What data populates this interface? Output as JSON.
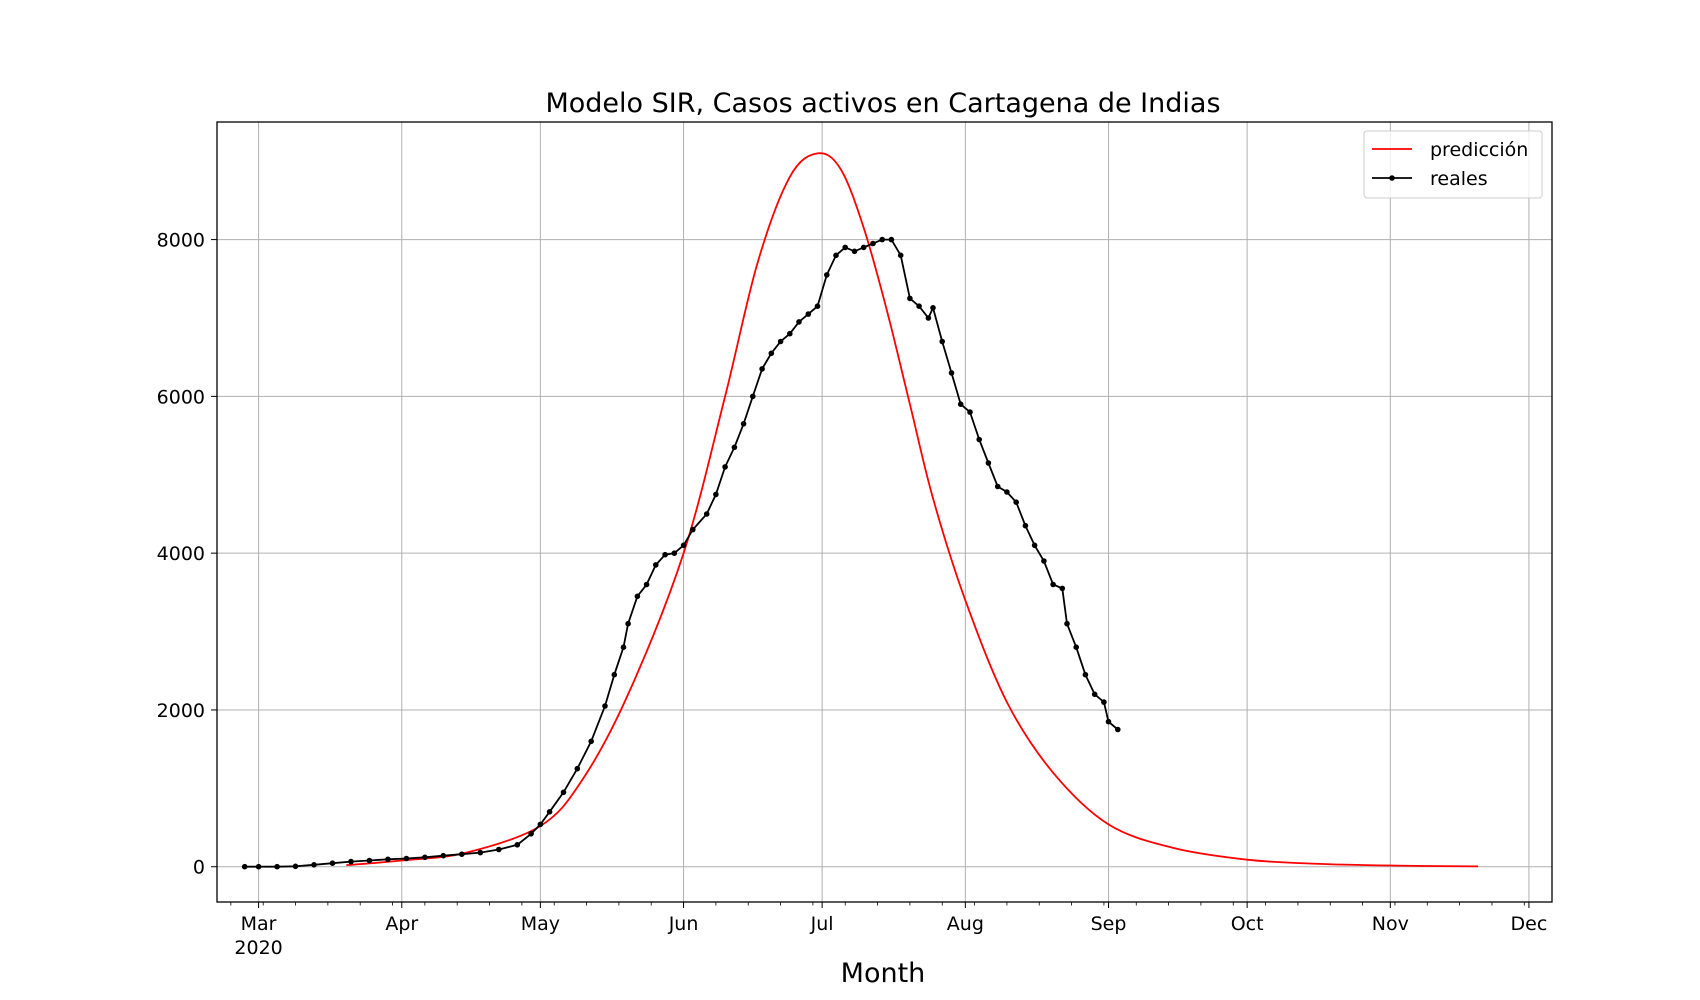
{
  "chart_data": {
    "type": "line",
    "title": "Modelo SIR, Casos activos en Cartagena de Indias",
    "xlabel": "Month",
    "ylabel": "",
    "x_range": [
      "2020-02-21",
      "2020-12-06"
    ],
    "ylim": [
      -450,
      9500
    ],
    "grid": true,
    "legend_position": "top-right",
    "x_ticks": [
      {
        "date": "2020-03-01",
        "label": "Mar",
        "sublabel": "2020"
      },
      {
        "date": "2020-04-01",
        "label": "Apr"
      },
      {
        "date": "2020-05-01",
        "label": "May"
      },
      {
        "date": "2020-06-01",
        "label": "Jun"
      },
      {
        "date": "2020-07-01",
        "label": "Jul"
      },
      {
        "date": "2020-08-01",
        "label": "Aug"
      },
      {
        "date": "2020-09-01",
        "label": "Sep"
      },
      {
        "date": "2020-10-01",
        "label": "Oct"
      },
      {
        "date": "2020-11-01",
        "label": "Nov"
      },
      {
        "date": "2020-12-01",
        "label": "Dec"
      }
    ],
    "y_ticks": [
      0,
      2000,
      4000,
      6000,
      8000
    ],
    "series": [
      {
        "name": "predicción",
        "color": "#ff0000",
        "marker": "none",
        "points": [
          [
            "2020-03-20",
            20
          ],
          [
            "2020-04-01",
            80
          ],
          [
            "2020-04-15",
            180
          ],
          [
            "2020-05-01",
            520
          ],
          [
            "2020-05-10",
            1100
          ],
          [
            "2020-05-20",
            2200
          ],
          [
            "2020-06-01",
            4000
          ],
          [
            "2020-06-10",
            6000
          ],
          [
            "2020-06-17",
            7700
          ],
          [
            "2020-06-24",
            8800
          ],
          [
            "2020-06-30",
            9100
          ],
          [
            "2020-07-05",
            8900
          ],
          [
            "2020-07-10",
            8150
          ],
          [
            "2020-07-15",
            7100
          ],
          [
            "2020-07-20",
            5900
          ],
          [
            "2020-07-25",
            4700
          ],
          [
            "2020-08-01",
            3400
          ],
          [
            "2020-08-10",
            2100
          ],
          [
            "2020-08-20",
            1200
          ],
          [
            "2020-09-01",
            540
          ],
          [
            "2020-09-15",
            240
          ],
          [
            "2020-10-01",
            90
          ],
          [
            "2020-10-15",
            40
          ],
          [
            "2020-11-01",
            15
          ],
          [
            "2020-11-20",
            4
          ]
        ]
      },
      {
        "name": "reales",
        "color": "#000000",
        "marker": "dot",
        "points": [
          [
            "2020-02-27",
            0
          ],
          [
            "2020-03-01",
            0
          ],
          [
            "2020-03-05",
            0
          ],
          [
            "2020-03-09",
            5
          ],
          [
            "2020-03-13",
            25
          ],
          [
            "2020-03-17",
            45
          ],
          [
            "2020-03-21",
            65
          ],
          [
            "2020-03-25",
            80
          ],
          [
            "2020-03-29",
            95
          ],
          [
            "2020-04-02",
            105
          ],
          [
            "2020-04-06",
            120
          ],
          [
            "2020-04-10",
            140
          ],
          [
            "2020-04-14",
            160
          ],
          [
            "2020-04-18",
            180
          ],
          [
            "2020-04-22",
            220
          ],
          [
            "2020-04-26",
            280
          ],
          [
            "2020-04-29",
            420
          ],
          [
            "2020-05-01",
            540
          ],
          [
            "2020-05-03",
            700
          ],
          [
            "2020-05-06",
            950
          ],
          [
            "2020-05-09",
            1250
          ],
          [
            "2020-05-12",
            1600
          ],
          [
            "2020-05-15",
            2050
          ],
          [
            "2020-05-17",
            2450
          ],
          [
            "2020-05-19",
            2800
          ],
          [
            "2020-05-20",
            3100
          ],
          [
            "2020-05-22",
            3450
          ],
          [
            "2020-05-24",
            3600
          ],
          [
            "2020-05-26",
            3850
          ],
          [
            "2020-05-28",
            3980
          ],
          [
            "2020-05-30",
            4000
          ],
          [
            "2020-06-01",
            4100
          ],
          [
            "2020-06-03",
            4300
          ],
          [
            "2020-06-06",
            4500
          ],
          [
            "2020-06-08",
            4750
          ],
          [
            "2020-06-10",
            5100
          ],
          [
            "2020-06-12",
            5350
          ],
          [
            "2020-06-14",
            5650
          ],
          [
            "2020-06-16",
            6000
          ],
          [
            "2020-06-18",
            6350
          ],
          [
            "2020-06-20",
            6550
          ],
          [
            "2020-06-22",
            6700
          ],
          [
            "2020-06-24",
            6800
          ],
          [
            "2020-06-26",
            6950
          ],
          [
            "2020-06-28",
            7050
          ],
          [
            "2020-06-30",
            7150
          ],
          [
            "2020-07-02",
            7550
          ],
          [
            "2020-07-04",
            7800
          ],
          [
            "2020-07-06",
            7900
          ],
          [
            "2020-07-08",
            7850
          ],
          [
            "2020-07-10",
            7900
          ],
          [
            "2020-07-12",
            7950
          ],
          [
            "2020-07-14",
            8000
          ],
          [
            "2020-07-16",
            8000
          ],
          [
            "2020-07-18",
            7800
          ],
          [
            "2020-07-20",
            7250
          ],
          [
            "2020-07-22",
            7150
          ],
          [
            "2020-07-24",
            7000
          ],
          [
            "2020-07-25",
            7130
          ],
          [
            "2020-07-27",
            6700
          ],
          [
            "2020-07-29",
            6300
          ],
          [
            "2020-07-31",
            5900
          ],
          [
            "2020-08-02",
            5800
          ],
          [
            "2020-08-04",
            5450
          ],
          [
            "2020-08-06",
            5150
          ],
          [
            "2020-08-08",
            4850
          ],
          [
            "2020-08-10",
            4780
          ],
          [
            "2020-08-12",
            4650
          ],
          [
            "2020-08-14",
            4350
          ],
          [
            "2020-08-16",
            4100
          ],
          [
            "2020-08-18",
            3900
          ],
          [
            "2020-08-20",
            3600
          ],
          [
            "2020-08-22",
            3550
          ],
          [
            "2020-08-23",
            3100
          ],
          [
            "2020-08-25",
            2800
          ],
          [
            "2020-08-27",
            2450
          ],
          [
            "2020-08-29",
            2200
          ],
          [
            "2020-08-31",
            2100
          ],
          [
            "2020-09-01",
            1850
          ],
          [
            "2020-09-03",
            1750
          ]
        ]
      }
    ]
  }
}
